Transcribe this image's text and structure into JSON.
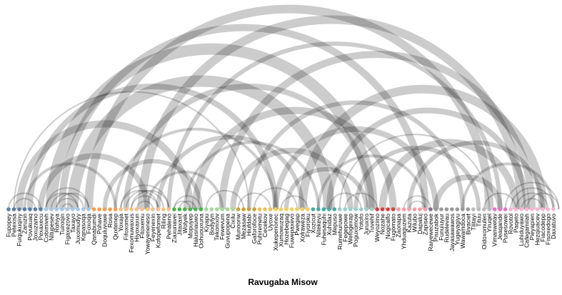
{
  "title": "Ravugaba Misow",
  "nodes": [
    {
      "label": "Fupopey",
      "color": "#5b7fa6"
    },
    {
      "label": "Petexisa",
      "color": "#5b7fa6"
    },
    {
      "label": "Fuiqukuqiny",
      "color": "#5b7fa6"
    },
    {
      "label": "Zaruzin",
      "color": "#5b7fa6"
    },
    {
      "label": "Povukuaq",
      "color": "#5b7fa6"
    },
    {
      "label": "Joxuzamo",
      "color": "#5b7fa6"
    },
    {
      "label": "Pexaxecu",
      "color": "#5b7fa6"
    },
    {
      "label": "Cobimiveh",
      "color": "#a6c8e8"
    },
    {
      "label": "Nitupesev",
      "color": "#a6c8e8"
    },
    {
      "label": "Rohiya",
      "color": "#a6c8e8"
    },
    {
      "label": "Tuiroqin",
      "color": "#a6c8e8"
    },
    {
      "label": "Figaxezovo",
      "color": "#a6c8e8"
    },
    {
      "label": "Taxayo",
      "color": "#a6c8e8"
    },
    {
      "label": "Juxomudyy",
      "color": "#a6c8e8"
    },
    {
      "label": "Kqnasoqa",
      "color": "#a6c8e8"
    },
    {
      "label": "Foxoqa",
      "color": "#a6c8e8"
    },
    {
      "label": "Qanabumdi",
      "color": "#f0a050"
    },
    {
      "label": "Pohave",
      "color": "#f0a050"
    },
    {
      "label": "Doquluvuwe",
      "color": "#f0a050"
    },
    {
      "label": "Rosa",
      "color": "#f0a050"
    },
    {
      "label": "Quxtenep",
      "color": "#f0a050"
    },
    {
      "label": "Yoxaja",
      "color": "#f5c08a"
    },
    {
      "label": "Fifoxomet",
      "color": "#f5c08a"
    },
    {
      "label": "Fexomuwaxus",
      "color": "#f5c08a"
    },
    {
      "label": "Hiyoxaxun",
      "color": "#f5c08a"
    },
    {
      "label": "Fitoxemu",
      "color": "#f5c08a"
    },
    {
      "label": "Yowayeneneso",
      "color": "#f5c08a"
    },
    {
      "label": "Feyenexin",
      "color": "#f5c08a"
    },
    {
      "label": "Kofopefomet",
      "color": "#f5c08a"
    },
    {
      "label": "Riling",
      "color": "#f5c08a"
    },
    {
      "label": "Pehaleno",
      "color": "#f5c08a"
    },
    {
      "label": "Ziaxunavei",
      "color": "#4caf50"
    },
    {
      "label": "Jitaxaxit",
      "color": "#4caf50"
    },
    {
      "label": "Wolyek",
      "color": "#4caf50"
    },
    {
      "label": "Mopuyep",
      "color": "#4caf50"
    },
    {
      "label": "Halusnauwo",
      "color": "#4caf50"
    },
    {
      "label": "Oohuouxuna",
      "color": "#4caf50"
    },
    {
      "label": "Kiyapu",
      "color": "#a5d69a"
    },
    {
      "label": "Bodylyn",
      "color": "#a5d69a"
    },
    {
      "label": "Tekonixov",
      "color": "#a5d69a"
    },
    {
      "label": "Fewevum",
      "color": "#a5d69a"
    },
    {
      "label": "Guvupopena",
      "color": "#a5d69a"
    },
    {
      "label": "Cixilu",
      "color": "#a5d69a"
    },
    {
      "label": "Munooriw",
      "color": "#c9a040"
    },
    {
      "label": "Mezasaw",
      "color": "#c9a040"
    },
    {
      "label": "Hiufdabi",
      "color": "#c9a040"
    },
    {
      "label": "Gaforofoce",
      "color": "#c9a040"
    },
    {
      "label": "Puhiremetu",
      "color": "#e8c060"
    },
    {
      "label": "Cecekov",
      "color": "#e8c060"
    },
    {
      "label": "Uyoxe",
      "color": "#e8c060"
    },
    {
      "label": "Xukepenonec",
      "color": "#f0d060"
    },
    {
      "label": "Xumowuzaq",
      "color": "#f0d060"
    },
    {
      "label": "Hozebegag",
      "color": "#f0d060"
    },
    {
      "label": "Fuwepaxevo",
      "color": "#f0d060"
    },
    {
      "label": "Pwegap",
      "color": "#f0d060"
    },
    {
      "label": "Xofraweza",
      "color": "#f0d060"
    },
    {
      "label": "Fiyoroku",
      "color": "#f0d060"
    },
    {
      "label": "Xozicut",
      "color": "#4aa8a0"
    },
    {
      "label": "Nitekeyu",
      "color": "#4aa8a0"
    },
    {
      "label": "Fuhesaquhi",
      "color": "#4aa8a0"
    },
    {
      "label": "Xuhidaz",
      "color": "#4aa8a0"
    },
    {
      "label": "Mepuso",
      "color": "#4aa8a0"
    },
    {
      "label": "Rumehuruwe",
      "color": "#9ccfc8"
    },
    {
      "label": "Fegepowe",
      "color": "#9ccfc8"
    },
    {
      "label": "Wefogexap",
      "color": "#9ccfc8"
    },
    {
      "label": "Poguxomow",
      "color": "#9ccfc8"
    },
    {
      "label": "Yotofo",
      "color": "#9ccfc8"
    },
    {
      "label": "Juruxiro",
      "color": "#9ccfc8"
    },
    {
      "label": "Tuvehif",
      "color": "#9ccfc8"
    },
    {
      "label": "Weyozimo",
      "color": "#d94040"
    },
    {
      "label": "Nozahe",
      "color": "#d94040"
    },
    {
      "label": "Nogicalfo",
      "color": "#d94040"
    },
    {
      "label": "Fugomato",
      "color": "#d94040"
    },
    {
      "label": "Zaonapa",
      "color": "#f0a0a8"
    },
    {
      "label": "Yhduaguzem",
      "color": "#f0a0a8"
    },
    {
      "label": "Kazuta",
      "color": "#f0a0a8"
    },
    {
      "label": "Wilubo",
      "color": "#f0a0a8"
    },
    {
      "label": "Dapaluj",
      "color": "#f0a0a8"
    },
    {
      "label": "Zapiseo",
      "color": "#f0a0a8"
    },
    {
      "label": "Raiyewecewe",
      "color": "#8c6d8c"
    },
    {
      "label": "Pisuzabok",
      "color": "#999999"
    },
    {
      "label": "Funuiuyur",
      "color": "#999999"
    },
    {
      "label": "Rudelevau",
      "color": "#999999"
    },
    {
      "label": "Jayasawawos",
      "color": "#999999"
    },
    {
      "label": "Yugeyagiyu",
      "color": "#999999"
    },
    {
      "label": "Wawamdoca",
      "color": "#999999"
    },
    {
      "label": "Bivaciet",
      "color": "#999999"
    },
    {
      "label": "Tilitayi",
      "color": "#bbbbbb"
    },
    {
      "label": "Tituu",
      "color": "#bbbbbb"
    },
    {
      "label": "Oidoxomulen",
      "color": "#bbbbbb"
    },
    {
      "label": "Yiruqel",
      "color": "#bbbbbb"
    },
    {
      "label": "Vimanwetav",
      "color": "#e377c2"
    },
    {
      "label": "Jeaqande",
      "color": "#e377c2"
    },
    {
      "label": "Pusesowei",
      "color": "#e377c2"
    },
    {
      "label": "Rovotol",
      "color": "#f7b6d2"
    },
    {
      "label": "Paqeto",
      "color": "#f7b6d2"
    },
    {
      "label": "Luhiduyawo",
      "color": "#f7b6d2"
    },
    {
      "label": "Cafegamilah",
      "color": "#f7b6d2"
    },
    {
      "label": "Pieyapien",
      "color": "#f7b6d2"
    },
    {
      "label": "Hezqiuacev",
      "color": "#f7b6d2"
    },
    {
      "label": "Fiacodepp",
      "color": "#f7b6d2"
    },
    {
      "label": "Fisoxedogo",
      "color": "#f7b6d2"
    },
    {
      "label": "Daxatuvo",
      "color": "#f7b6d2"
    }
  ],
  "links": [
    {
      "source": 15,
      "target": 90,
      "value": 6
    },
    {
      "source": 8,
      "target": 68,
      "value": 8
    },
    {
      "source": 10,
      "target": 78,
      "value": 5
    },
    {
      "source": 22,
      "target": 68,
      "value": 4
    },
    {
      "source": 4,
      "target": 50,
      "value": 4
    },
    {
      "source": 25,
      "target": 96,
      "value": 6
    },
    {
      "source": 30,
      "target": 92,
      "value": 3
    },
    {
      "source": 12,
      "target": 60,
      "value": 8
    },
    {
      "source": 40,
      "target": 98,
      "value": 5
    },
    {
      "source": 45,
      "target": 85,
      "value": 3
    },
    {
      "source": 55,
      "target": 100,
      "value": 6
    },
    {
      "source": 60,
      "target": 97,
      "value": 4
    },
    {
      "source": 2,
      "target": 34,
      "value": 5
    },
    {
      "source": 6,
      "target": 26,
      "value": 4
    },
    {
      "source": 35,
      "target": 72,
      "value": 5
    },
    {
      "source": 28,
      "target": 55,
      "value": 3
    },
    {
      "source": 50,
      "target": 80,
      "value": 4
    },
    {
      "source": 70,
      "target": 95,
      "value": 5
    },
    {
      "source": 65,
      "target": 88,
      "value": 3
    },
    {
      "source": 42,
      "target": 64,
      "value": 4
    },
    {
      "source": 18,
      "target": 36,
      "value": 3
    },
    {
      "source": 75,
      "target": 100,
      "value": 3
    },
    {
      "source": 80,
      "target": 92,
      "value": 4
    },
    {
      "source": 52,
      "target": 67,
      "value": 3
    },
    {
      "source": 3,
      "target": 20,
      "value": 2
    },
    {
      "source": 20,
      "target": 50,
      "value": 2
    },
    {
      "source": 33,
      "target": 58,
      "value": 2
    },
    {
      "source": 1,
      "target": 45,
      "value": 1
    },
    {
      "source": 58,
      "target": 78,
      "value": 2
    },
    {
      "source": 85,
      "target": 102,
      "value": 2
    },
    {
      "source": 62,
      "target": 90,
      "value": 1
    },
    {
      "source": 37,
      "target": 44,
      "value": 1
    },
    {
      "source": 46,
      "target": 54,
      "value": 1
    },
    {
      "source": 26,
      "target": 40,
      "value": 2
    },
    {
      "source": 0,
      "target": 6,
      "value": 1
    },
    {
      "source": 1,
      "target": 5,
      "value": 1
    },
    {
      "source": 7,
      "target": 15,
      "value": 1
    },
    {
      "source": 8,
      "target": 14,
      "value": 1
    },
    {
      "source": 9,
      "target": 13,
      "value": 1
    },
    {
      "source": 10,
      "target": 12,
      "value": 1
    },
    {
      "source": 7,
      "target": 13,
      "value": 1
    },
    {
      "source": 9,
      "target": 15,
      "value": 1
    },
    {
      "source": 21,
      "target": 30,
      "value": 1
    },
    {
      "source": 22,
      "target": 29,
      "value": 1
    },
    {
      "source": 23,
      "target": 28,
      "value": 1
    },
    {
      "source": 24,
      "target": 27,
      "value": 1
    },
    {
      "source": 21,
      "target": 28,
      "value": 1
    },
    {
      "source": 23,
      "target": 30,
      "value": 1
    },
    {
      "source": 31,
      "target": 36,
      "value": 1
    },
    {
      "source": 32,
      "target": 35,
      "value": 1
    },
    {
      "source": 31,
      "target": 34,
      "value": 1
    },
    {
      "source": 74,
      "target": 79,
      "value": 1
    },
    {
      "source": 75,
      "target": 78,
      "value": 1
    },
    {
      "source": 93,
      "target": 103,
      "value": 1
    },
    {
      "source": 94,
      "target": 102,
      "value": 1
    },
    {
      "source": 95,
      "target": 101,
      "value": 1
    },
    {
      "source": 96,
      "target": 100,
      "value": 1
    },
    {
      "source": 97,
      "target": 103,
      "value": 1
    },
    {
      "source": 89,
      "target": 95,
      "value": 1
    },
    {
      "source": 43,
      "target": 49,
      "value": 1
    },
    {
      "source": 51,
      "target": 56,
      "value": 1
    },
    {
      "source": 63,
      "target": 69,
      "value": 1
    },
    {
      "source": 60,
      "target": 66,
      "value": 1
    }
  ]
}
